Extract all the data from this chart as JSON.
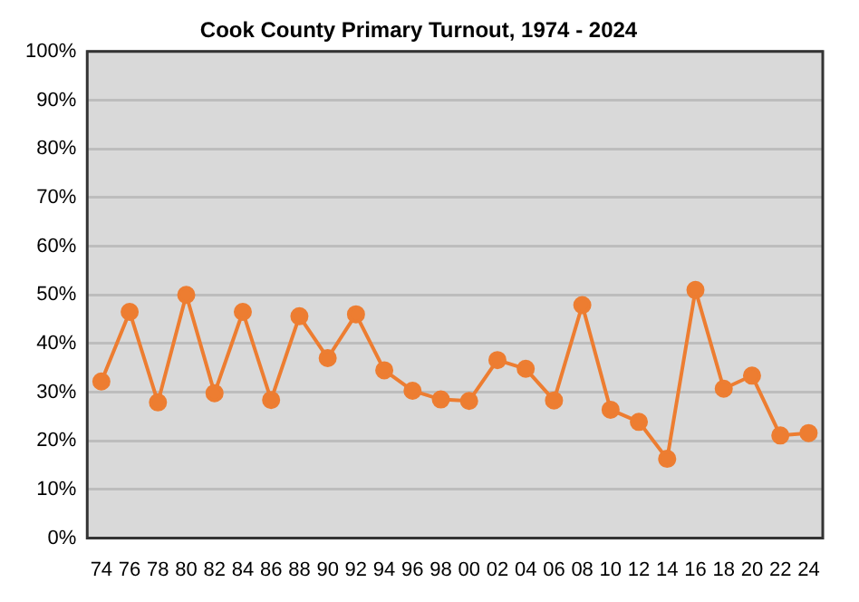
{
  "chart_data": {
    "type": "line",
    "title": "Cook County Primary Turnout, 1974 - 2024",
    "categories": [
      "74",
      "76",
      "78",
      "80",
      "82",
      "84",
      "86",
      "88",
      "90",
      "92",
      "94",
      "96",
      "98",
      "00",
      "02",
      "04",
      "06",
      "08",
      "10",
      "12",
      "14",
      "16",
      "18",
      "20",
      "22",
      "24"
    ],
    "series": [
      {
        "color": "#ed7d31",
        "values": [
          32.2,
          46.5,
          27.9,
          50,
          29.8,
          46.5,
          28.4,
          45.6,
          37,
          46,
          34.5,
          30.3,
          28.5,
          28.2,
          36.6,
          34.8,
          28.3,
          47.9,
          26.4,
          23.9,
          16.3,
          51,
          30.7,
          33.4,
          21.1,
          21.6
        ]
      }
    ],
    "ylim": [
      0,
      100
    ],
    "yticks": [
      {
        "value": 0,
        "label": "0%"
      },
      {
        "value": 10,
        "label": "10%"
      },
      {
        "value": 20,
        "label": "20%"
      },
      {
        "value": 30,
        "label": "30%"
      },
      {
        "value": 40,
        "label": "40%"
      },
      {
        "value": 50,
        "label": "50%"
      },
      {
        "value": 60,
        "label": "60%"
      },
      {
        "value": 70,
        "label": "70%"
      },
      {
        "value": 80,
        "label": "80%"
      },
      {
        "value": 90,
        "label": "90%"
      },
      {
        "value": 100,
        "label": "100%"
      }
    ],
    "grid": "y",
    "legend": false,
    "marker": "circle",
    "line_style": "solid"
  }
}
